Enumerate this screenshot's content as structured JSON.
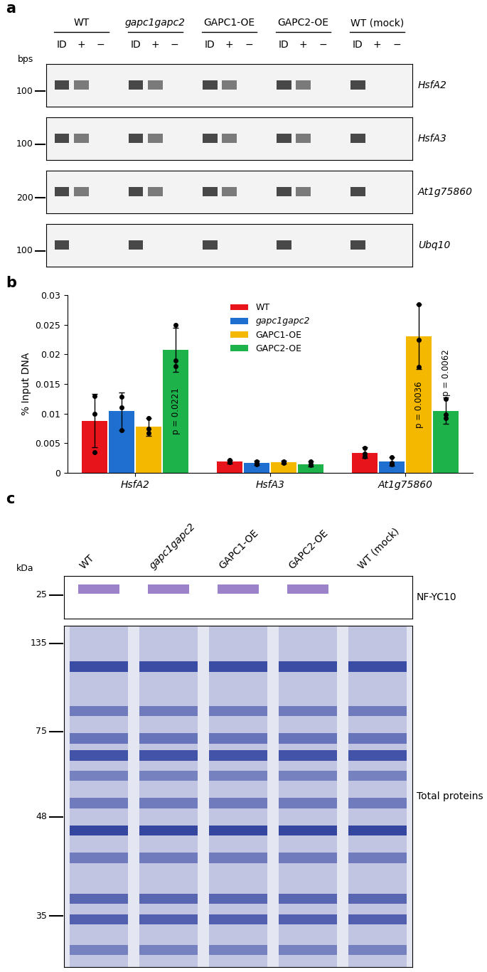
{
  "panel_labels": [
    "a",
    "b",
    "c"
  ],
  "panel_a": {
    "size_unit": "bps",
    "groups": [
      "WT",
      "gapc1gapc2",
      "GAPC1-OE",
      "GAPC2-OE",
      "WT (mock)"
    ],
    "lanes": [
      "ID",
      "+",
      "−"
    ],
    "gels": [
      {
        "name": "HsfA2",
        "marker": 100,
        "bands": [
          [
            true,
            true,
            false
          ],
          [
            true,
            true,
            false
          ],
          [
            true,
            true,
            false
          ],
          [
            true,
            true,
            false
          ],
          [
            true,
            false,
            false
          ]
        ]
      },
      {
        "name": "HsfA3",
        "marker": 100,
        "bands": [
          [
            true,
            true,
            false
          ],
          [
            true,
            true,
            false
          ],
          [
            true,
            true,
            false
          ],
          [
            true,
            true,
            false
          ],
          [
            true,
            false,
            false
          ]
        ]
      },
      {
        "name": "At1g75860",
        "marker": 200,
        "bands": [
          [
            true,
            true,
            false
          ],
          [
            true,
            true,
            false
          ],
          [
            true,
            true,
            false
          ],
          [
            true,
            true,
            false
          ],
          [
            true,
            false,
            false
          ]
        ]
      },
      {
        "name": "Ubq10",
        "marker": 100,
        "bands": [
          [
            true,
            false,
            false
          ],
          [
            true,
            false,
            false
          ],
          [
            true,
            false,
            false
          ],
          [
            true,
            false,
            false
          ],
          [
            true,
            false,
            false
          ]
        ]
      }
    ]
  },
  "chart_data": {
    "type": "bar",
    "categories": [
      "HsfA2",
      "HsfA3",
      "At1g75860"
    ],
    "ylabel": "% Input DNA",
    "ylim": [
      0,
      0.03
    ],
    "yticks": [
      0,
      0.005,
      0.01,
      0.015,
      0.02,
      0.025,
      0.03
    ],
    "legend": "upper center",
    "series": [
      {
        "name": "WT",
        "color": "#e8141c",
        "values": [
          0.0088,
          0.0019,
          0.0034
        ],
        "errors": [
          0.0045,
          0.0003,
          0.0009
        ],
        "points": [
          [
            0.013,
            0.01,
            0.0035
          ],
          [
            0.0022,
            0.0018,
            0.0019
          ],
          [
            0.0042,
            0.0033,
            0.0028
          ]
        ]
      },
      {
        "name": "gapc1gapc2",
        "color": "#1f6fd1",
        "values": [
          0.0104,
          0.0017,
          0.0019
        ],
        "errors": [
          0.0032,
          0.0004,
          0.0007
        ],
        "points": [
          [
            0.0128,
            0.011,
            0.0072
          ],
          [
            0.0019,
            0.0015,
            0.0017
          ],
          [
            0.0026,
            0.0017,
            0.0015
          ]
        ]
      },
      {
        "name": "GAPC1-OE",
        "color": "#f5b800",
        "values": [
          0.0078,
          0.0018,
          0.023
        ],
        "errors": [
          0.0015,
          0.0002,
          0.0055
        ],
        "points": [
          [
            0.0092,
            0.0075,
            0.0067
          ],
          [
            0.0019,
            0.0018,
            0.0017
          ],
          [
            0.0285,
            0.0225,
            0.0179
          ]
        ]
      },
      {
        "name": "GAPC2-OE",
        "color": "#1db34a",
        "values": [
          0.0208,
          0.0015,
          0.0105
        ],
        "errors": [
          0.0037,
          0.0004,
          0.0022
        ],
        "points": [
          [
            0.025,
            0.019,
            0.018
          ],
          [
            0.0019,
            0.0013,
            0.0014
          ],
          [
            0.0125,
            0.0098,
            0.0092
          ]
        ]
      }
    ],
    "annotations": [
      {
        "text": "p = 0.0221",
        "series": "GAPC2-OE",
        "category": "HsfA2"
      },
      {
        "text": "p = 0.0036",
        "series": "GAPC1-OE",
        "category": "At1g75860"
      },
      {
        "text": "p = 0.0062",
        "series": "GAPC2-OE",
        "category": "At1g75860"
      }
    ]
  },
  "panel_c": {
    "size_unit": "kDa",
    "lanes": [
      "WT",
      "gapc1gapc2",
      "GAPC1-OE",
      "GAPC2-OE",
      "WT (mock)"
    ],
    "blots": [
      {
        "name": "NF-YC10",
        "markers": [
          25
        ],
        "bands": [
          true,
          true,
          true,
          true,
          false
        ]
      },
      {
        "name": "Total proteins",
        "markers": [
          135,
          75,
          48,
          35
        ],
        "bands": [
          true,
          true,
          true,
          true,
          true
        ]
      }
    ]
  }
}
